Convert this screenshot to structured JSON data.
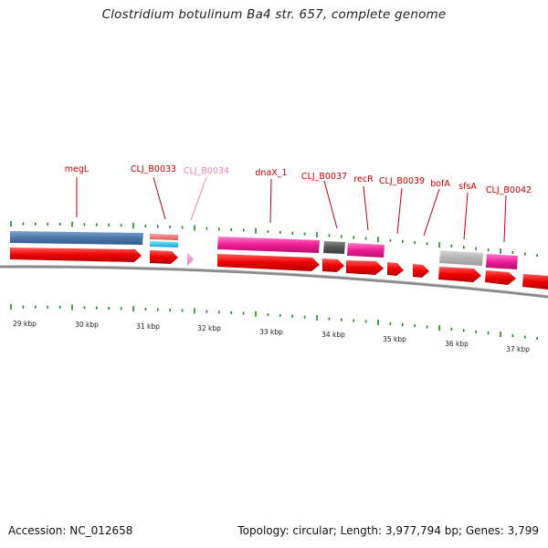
{
  "title": "Clostridium botulinum Ba4 str. 657, complete genome",
  "colors": {
    "label_default": "#cc0000",
    "label_faded": "#f080c0",
    "tick": "#1a8a1a",
    "backbone": "#888888",
    "cds": "#ee0000"
  },
  "gene_labels": [
    {
      "text": "megL",
      "faded": false
    },
    {
      "text": "CLJ_B0033",
      "faded": false
    },
    {
      "text": "CLJ_B0034",
      "faded": true
    },
    {
      "text": "dnaX_1",
      "faded": false
    },
    {
      "text": "CLJ_B0037",
      "faded": false
    },
    {
      "text": "recR",
      "faded": false
    },
    {
      "text": "CLJ_B0039",
      "faded": false
    },
    {
      "text": "bofA",
      "faded": false
    },
    {
      "text": "sfsA",
      "faded": false
    },
    {
      "text": "CLJ_B0042",
      "faded": false
    }
  ],
  "axis_labels": [
    "29 kbp",
    "30 kbp",
    "31 kbp",
    "32 kbp",
    "33 kbp",
    "34 kbp",
    "35 kbp",
    "36 kbp",
    "37 kbp"
  ],
  "footer": {
    "accession": "Accession: NC_012658",
    "stats": "Topology: circular; Length: 3,977,794 bp; Genes: 3,799"
  }
}
